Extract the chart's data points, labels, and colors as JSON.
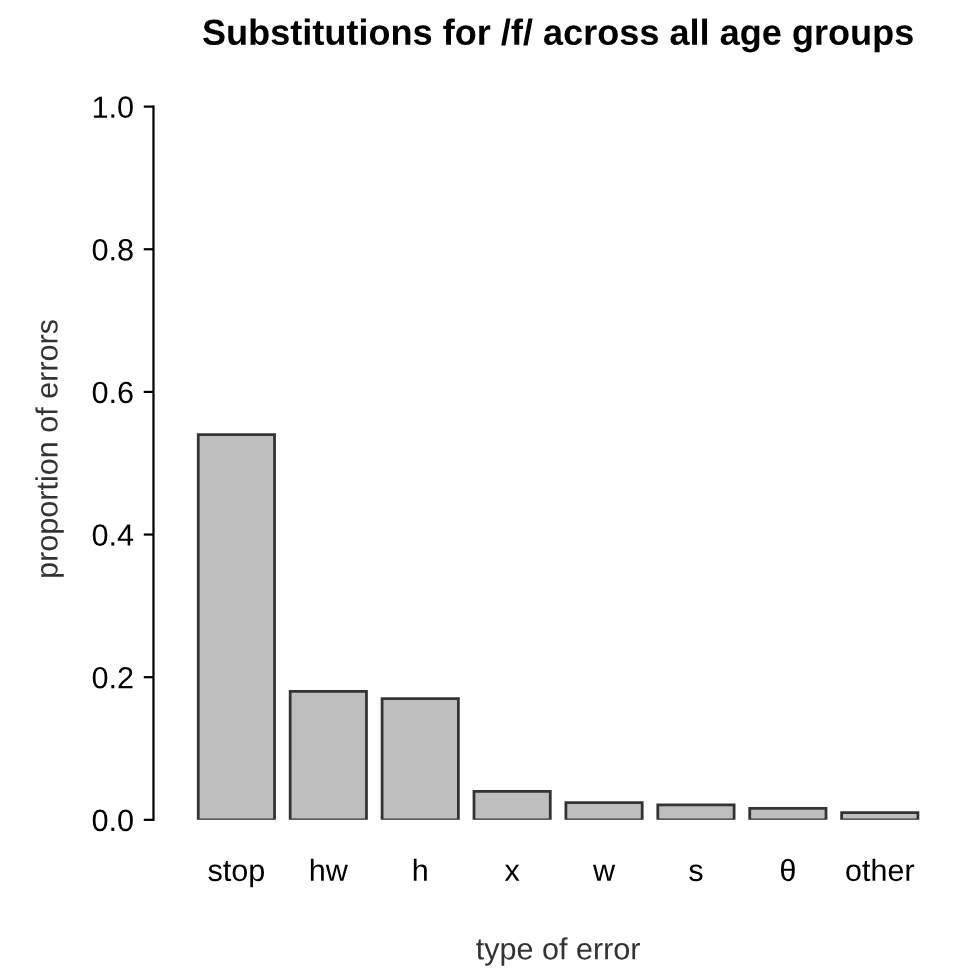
{
  "chart_data": {
    "type": "bar",
    "title": "Substitutions for /f/ across all age groups",
    "xlabel": "type of error",
    "ylabel": "proportion of errors",
    "categories": [
      "stop",
      "hw",
      "h",
      "x",
      "w",
      "s",
      "θ",
      "other"
    ],
    "values": [
      0.54,
      0.18,
      0.17,
      0.04,
      0.024,
      0.021,
      0.016,
      0.01
    ],
    "color": "#bebebe",
    "ylim": [
      0,
      1
    ],
    "yticks": [
      {
        "value": 0,
        "label": "0.0"
      },
      0.2,
      0.4,
      0.6,
      0.8,
      {
        "value": 1,
        "label": "1.0"
      }
    ],
    "grid": false,
    "legend": false
  }
}
